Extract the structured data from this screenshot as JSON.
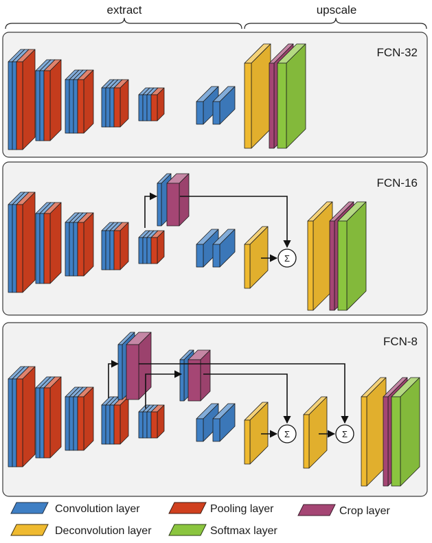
{
  "header": {
    "extract_label": "extract",
    "upscale_label": "upscale"
  },
  "panels": [
    {
      "title": "FCN-32"
    },
    {
      "title": "FCN-16"
    },
    {
      "title": "FCN-8"
    }
  ],
  "sum_symbol": "Σ",
  "legend": [
    {
      "key": "conv",
      "label": "Convolution layer",
      "color": "#3f7fc4"
    },
    {
      "key": "pool",
      "label": "Pooling layer",
      "color": "#d0401f"
    },
    {
      "key": "crop",
      "label": "Crop layer",
      "color": "#a54674"
    },
    {
      "key": "deconv",
      "label": "Deconvolution layer",
      "color": "#efba30"
    },
    {
      "key": "soft",
      "label": "Softmax layer",
      "color": "#8bc53f"
    }
  ]
}
